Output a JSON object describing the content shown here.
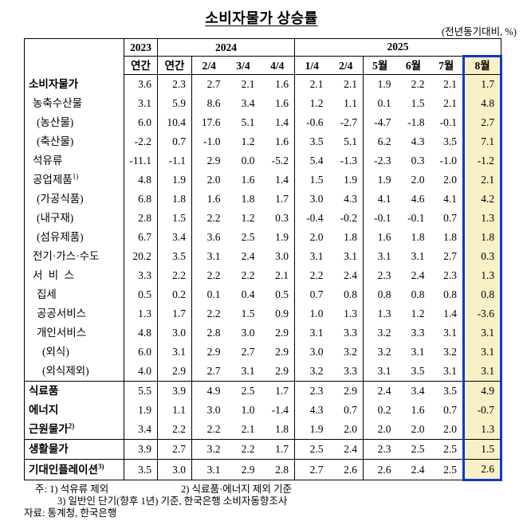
{
  "title": "소비자물가 상승률",
  "unit_note": "(전년동기대비, %)",
  "table": {
    "year_groups": [
      {
        "label": "2023",
        "span": 1
      },
      {
        "label": "2024",
        "span": 4
      },
      {
        "label": "2025",
        "span": 6
      }
    ],
    "sub_headers": [
      "연간",
      "연간",
      "2/4",
      "3/4",
      "4/4",
      "1/4",
      "2/4",
      "5월",
      "6월",
      "7월",
      "8월"
    ],
    "highlight": {
      "column": "8월",
      "bg_color": "#FAF0C7",
      "border_color": "#0B38C8"
    },
    "rows": [
      {
        "label": "소비자물가",
        "sup": "",
        "indent": 0,
        "bold": true,
        "sep": false,
        "values": [
          "3.6",
          "2.3",
          "2.7",
          "2.1",
          "1.6",
          "2.1",
          "2.1",
          "1.9",
          "2.2",
          "2.1",
          "1.7"
        ]
      },
      {
        "label": "농축수산물",
        "sup": "",
        "indent": 1,
        "bold": false,
        "sep": false,
        "values": [
          "3.1",
          "5.9",
          "8.6",
          "3.4",
          "1.6",
          "1.2",
          "1.1",
          "0.1",
          "1.5",
          "2.1",
          "4.8"
        ]
      },
      {
        "label": "(농산물)",
        "sup": "",
        "indent": 2,
        "bold": false,
        "sep": false,
        "values": [
          "6.0",
          "10.4",
          "17.6",
          "5.1",
          "1.4",
          "-0.6",
          "-2.7",
          "-4.7",
          "-1.8",
          "-0.1",
          "2.7"
        ]
      },
      {
        "label": "(축산물)",
        "sup": "",
        "indent": 2,
        "bold": false,
        "sep": false,
        "values": [
          "-2.2",
          "0.7",
          "-1.0",
          "1.2",
          "1.6",
          "3.5",
          "5.1",
          "6.2",
          "4.3",
          "3.5",
          "7.1"
        ]
      },
      {
        "label": "석유류",
        "sup": "",
        "indent": 1,
        "bold": false,
        "sep": false,
        "values": [
          "-11.1",
          "-1.1",
          "2.9",
          "0.0",
          "-5.2",
          "5.4",
          "-1.3",
          "-2.3",
          "0.3",
          "-1.0",
          "-1.2"
        ]
      },
      {
        "label": "공업제품",
        "sup": "1)",
        "indent": 1,
        "bold": false,
        "sep": false,
        "values": [
          "4.8",
          "1.9",
          "2.0",
          "1.6",
          "1.4",
          "1.5",
          "1.9",
          "1.9",
          "2.0",
          "2.0",
          "2.1"
        ]
      },
      {
        "label": "(가공식품)",
        "sup": "",
        "indent": 2,
        "bold": false,
        "sep": false,
        "values": [
          "6.8",
          "1.8",
          "1.6",
          "1.8",
          "1.7",
          "3.0",
          "4.3",
          "4.1",
          "4.6",
          "4.1",
          "4.2"
        ]
      },
      {
        "label": "(내구재)",
        "sup": "",
        "indent": 2,
        "bold": false,
        "sep": false,
        "values": [
          "2.8",
          "1.5",
          "2.2",
          "1.2",
          "0.3",
          "-0.4",
          "-0.2",
          "-0.1",
          "-0.1",
          "0.7",
          "1.3"
        ]
      },
      {
        "label": "(섬유제품)",
        "sup": "",
        "indent": 2,
        "bold": false,
        "sep": false,
        "values": [
          "6.7",
          "3.4",
          "3.6",
          "2.5",
          "1.9",
          "2.0",
          "1.8",
          "1.6",
          "1.8",
          "1.8",
          "1.8"
        ]
      },
      {
        "label": "전기·가스·수도",
        "sup": "",
        "indent": 1,
        "bold": false,
        "sep": false,
        "values": [
          "20.2",
          "3.5",
          "3.1",
          "2.4",
          "3.0",
          "3.1",
          "3.1",
          "3.1",
          "3.1",
          "2.7",
          "0.3"
        ]
      },
      {
        "label": "서 비 스",
        "sup": "",
        "indent": 1,
        "bold": false,
        "sep": false,
        "values": [
          "3.3",
          "2.2",
          "2.2",
          "2.2",
          "2.1",
          "2.2",
          "2.4",
          "2.3",
          "2.4",
          "2.3",
          "1.3"
        ]
      },
      {
        "label": "집세",
        "sup": "",
        "indent": 2,
        "bold": false,
        "sep": false,
        "values": [
          "0.5",
          "0.2",
          "0.1",
          "0.4",
          "0.5",
          "0.7",
          "0.8",
          "0.8",
          "0.8",
          "0.8",
          "0.8"
        ]
      },
      {
        "label": "공공서비스",
        "sup": "",
        "indent": 2,
        "bold": false,
        "sep": false,
        "values": [
          "1.3",
          "1.7",
          "2.2",
          "1.5",
          "0.9",
          "1.0",
          "1.3",
          "1.3",
          "1.2",
          "1.4",
          "-3.6"
        ]
      },
      {
        "label": "개인서비스",
        "sup": "",
        "indent": 2,
        "bold": false,
        "sep": false,
        "values": [
          "4.8",
          "3.0",
          "2.8",
          "3.0",
          "2.9",
          "3.1",
          "3.3",
          "3.2",
          "3.3",
          "3.1",
          "3.1"
        ]
      },
      {
        "label": "(외식)",
        "sup": "",
        "indent": 3,
        "bold": false,
        "sep": false,
        "values": [
          "6.0",
          "3.1",
          "2.9",
          "2.7",
          "2.9",
          "3.0",
          "3.2",
          "3.2",
          "3.1",
          "3.2",
          "3.1"
        ]
      },
      {
        "label": "(외식제외)",
        "sup": "",
        "indent": 3,
        "bold": false,
        "sep": false,
        "values": [
          "4.0",
          "2.9",
          "2.7",
          "3.1",
          "2.9",
          "3.2",
          "3.3",
          "3.1",
          "3.5",
          "3.1",
          "3.1"
        ]
      },
      {
        "label": "식료품",
        "sup": "",
        "indent": 0,
        "bold": true,
        "sep": true,
        "values": [
          "5.5",
          "3.9",
          "4.9",
          "2.5",
          "1.7",
          "2.3",
          "2.9",
          "2.4",
          "3.4",
          "3.5",
          "4.9"
        ]
      },
      {
        "label": "에너지",
        "sup": "",
        "indent": 0,
        "bold": true,
        "sep": false,
        "values": [
          "1.9",
          "1.1",
          "3.0",
          "1.0",
          "-1.4",
          "4.3",
          "0.7",
          "0.2",
          "1.6",
          "0.7",
          "-0.7"
        ]
      },
      {
        "label": "근원물가",
        "sup": "2)",
        "indent": 0,
        "bold": true,
        "sep": false,
        "values": [
          "3.4",
          "2.2",
          "2.2",
          "2.1",
          "1.8",
          "1.9",
          "2.0",
          "2.0",
          "2.0",
          "2.0",
          "1.3"
        ]
      },
      {
        "label": "생활물가",
        "sup": "",
        "indent": 0,
        "bold": true,
        "sep": true,
        "values": [
          "3.9",
          "2.7",
          "3.2",
          "2.2",
          "1.7",
          "2.5",
          "2.4",
          "2.3",
          "2.5",
          "2.5",
          "1.5"
        ]
      },
      {
        "label": "기대인플레이션",
        "sup": "3)",
        "indent": 0,
        "bold": true,
        "sep": true,
        "values": [
          "3.5",
          "3.0",
          "3.1",
          "2.9",
          "2.8",
          "2.7",
          "2.6",
          "2.6",
          "2.4",
          "2.5",
          "2.6"
        ]
      }
    ]
  },
  "footnotes": {
    "note1a": "주: 1) 석유류 제외",
    "note1b": "2) 식료품·에너지 제외 기준",
    "note2": "3) 일반인 단기(향후 1년) 기준, 한국은행 소비자동향조사",
    "source": "자료: 통계청, 한국은행"
  }
}
